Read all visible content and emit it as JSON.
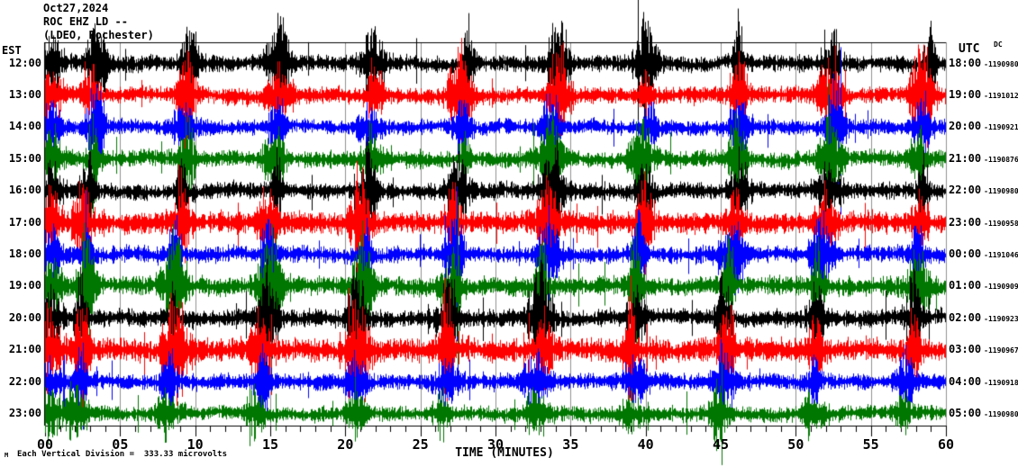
{
  "header": {
    "date": "Oct27,2024",
    "station": "ROC EHZ LD --",
    "location": "(LDEO, Rochester)"
  },
  "axes": {
    "left_tz_label": "EST",
    "right_tz_label": "UTC",
    "dc_column_label": "DC",
    "x_title": "TIME (MINUTES)"
  },
  "footer": {
    "scale_text": "Each Vertical Division =  333.33 microvolts",
    "corner_mark": "M"
  },
  "chart_data": {
    "type": "line",
    "subtype": "helicorder-seismogram",
    "title": "Oct27,2024 ROC EHZ LD -- (LDEO, Rochester)",
    "xlabel": "TIME (MINUTES)",
    "x_range_minutes": [
      0,
      60
    ],
    "x_tick_labels": [
      "00",
      "05",
      "10",
      "15",
      "20",
      "25",
      "30",
      "35",
      "40",
      "45",
      "50",
      "55",
      "60"
    ],
    "x_major_tick_minutes": 5,
    "x_minor_tick_minutes": 1,
    "grid": "vertical-every-5-minutes",
    "vertical_division_microvolts": 333.33,
    "colors": {
      "black": "#000000",
      "red": "#ff0000",
      "blue": "#0000ff",
      "green": "#007700",
      "grid": "#909090",
      "frame": "#000000"
    },
    "rows": [
      {
        "est": "12:00",
        "utc": "18:00",
        "dc": "-1190980",
        "color": "black",
        "noise": 6.0,
        "burst_amp": 6.0
      },
      {
        "est": "13:00",
        "utc": "19:00",
        "dc": "-1191012",
        "color": "red",
        "noise": 6.0,
        "burst_amp": 5.0
      },
      {
        "est": "14:00",
        "utc": "20:00",
        "dc": "-1190921",
        "color": "blue",
        "noise": 5.5,
        "burst_amp": 5.0
      },
      {
        "est": "15:00",
        "utc": "21:00",
        "dc": "-1190876",
        "color": "green",
        "noise": 6.0,
        "burst_amp": 5.0
      },
      {
        "est": "16:00",
        "utc": "22:00",
        "dc": "-1190980",
        "color": "black",
        "noise": 6.0,
        "burst_amp": 5.5
      },
      {
        "est": "17:00",
        "utc": "23:00",
        "dc": "-1190958",
        "color": "red",
        "noise": 8.0,
        "burst_amp": 4.0
      },
      {
        "est": "18:00",
        "utc": "00:00",
        "dc": "-1191046",
        "color": "blue",
        "noise": 6.0,
        "burst_amp": 5.0
      },
      {
        "est": "19:00",
        "utc": "01:00",
        "dc": "-1190909",
        "color": "green",
        "noise": 7.0,
        "burst_amp": 5.0
      },
      {
        "est": "20:00",
        "utc": "02:00",
        "dc": "-1190923",
        "color": "black",
        "noise": 6.5,
        "burst_amp": 5.0
      },
      {
        "est": "21:00",
        "utc": "03:00",
        "dc": "-1190967",
        "color": "red",
        "noise": 8.5,
        "burst_amp": 4.5
      },
      {
        "est": "22:00",
        "utc": "04:00",
        "dc": "-1190918",
        "color": "blue",
        "noise": 6.0,
        "burst_amp": 4.5
      },
      {
        "est": "23:00",
        "utc": "05:00",
        "dc": "-1190980",
        "color": "green",
        "noise": 5.5,
        "burst_amp": 3.5
      }
    ],
    "synthesis": {
      "seed": 42,
      "burst_first_minute": 3.4,
      "burst_period_minutes": 6.15,
      "burst_count": 10,
      "per_row_drift_minutes": -0.125,
      "start_burst_minute": 0.35,
      "start_burst_gain": 0.8,
      "burst_sigma_minutes": [
        0.22,
        0.52
      ],
      "spike_probability": 0.012
    }
  }
}
